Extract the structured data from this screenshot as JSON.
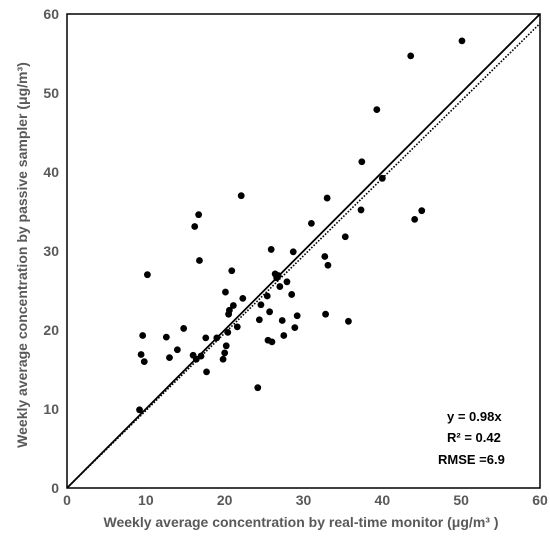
{
  "chart_data": {
    "type": "scatter",
    "xlabel": "Weekly average concentration by real-time monitor (μg/m³ )",
    "ylabel": "Weekly average concentration by passive sampler (μg/m³)",
    "xlim": [
      0,
      60
    ],
    "ylim": [
      0,
      60
    ],
    "x_ticks": [
      "0",
      "10",
      "20",
      "30",
      "40",
      "50",
      "60"
    ],
    "y_ticks": [
      "0",
      "10",
      "20",
      "30",
      "40",
      "50",
      "60"
    ],
    "grid": false,
    "colors": {
      "points": "#000000",
      "lines": "#000000",
      "axis_text": "#595959",
      "frame": "#000000"
    },
    "points": [
      {
        "x": 9.2,
        "y": 9.9
      },
      {
        "x": 9.4,
        "y": 16.9
      },
      {
        "x": 9.6,
        "y": 19.3
      },
      {
        "x": 9.8,
        "y": 16.0
      },
      {
        "x": 10.2,
        "y": 27.0
      },
      {
        "x": 12.6,
        "y": 19.1
      },
      {
        "x": 13.0,
        "y": 16.5
      },
      {
        "x": 14.0,
        "y": 17.5
      },
      {
        "x": 14.8,
        "y": 20.2
      },
      {
        "x": 16.0,
        "y": 16.8
      },
      {
        "x": 16.2,
        "y": 33.1
      },
      {
        "x": 16.4,
        "y": 16.3
      },
      {
        "x": 16.7,
        "y": 34.6
      },
      {
        "x": 16.8,
        "y": 28.8
      },
      {
        "x": 17.0,
        "y": 16.7
      },
      {
        "x": 17.6,
        "y": 19.0
      },
      {
        "x": 17.7,
        "y": 14.7
      },
      {
        "x": 19.0,
        "y": 19.0
      },
      {
        "x": 19.8,
        "y": 16.3
      },
      {
        "x": 20.0,
        "y": 17.1
      },
      {
        "x": 20.1,
        "y": 24.8
      },
      {
        "x": 20.2,
        "y": 18.0
      },
      {
        "x": 20.4,
        "y": 19.7
      },
      {
        "x": 20.5,
        "y": 22.0
      },
      {
        "x": 20.6,
        "y": 22.5
      },
      {
        "x": 20.9,
        "y": 27.5
      },
      {
        "x": 21.1,
        "y": 23.1
      },
      {
        "x": 21.6,
        "y": 20.4
      },
      {
        "x": 22.1,
        "y": 37.0
      },
      {
        "x": 22.3,
        "y": 24.0
      },
      {
        "x": 24.2,
        "y": 12.7
      },
      {
        "x": 24.4,
        "y": 21.3
      },
      {
        "x": 24.6,
        "y": 23.2
      },
      {
        "x": 25.4,
        "y": 24.3
      },
      {
        "x": 25.5,
        "y": 18.7
      },
      {
        "x": 25.7,
        "y": 22.3
      },
      {
        "x": 25.9,
        "y": 30.2
      },
      {
        "x": 26.0,
        "y": 18.5
      },
      {
        "x": 26.4,
        "y": 27.1
      },
      {
        "x": 26.6,
        "y": 26.6
      },
      {
        "x": 26.8,
        "y": 26.9
      },
      {
        "x": 27.0,
        "y": 25.5
      },
      {
        "x": 27.3,
        "y": 21.2
      },
      {
        "x": 27.5,
        "y": 19.3
      },
      {
        "x": 27.9,
        "y": 26.1
      },
      {
        "x": 28.5,
        "y": 24.5
      },
      {
        "x": 28.7,
        "y": 29.9
      },
      {
        "x": 28.9,
        "y": 20.3
      },
      {
        "x": 29.2,
        "y": 21.8
      },
      {
        "x": 31.0,
        "y": 33.5
      },
      {
        "x": 32.7,
        "y": 29.3
      },
      {
        "x": 32.8,
        "y": 22.0
      },
      {
        "x": 33.0,
        "y": 36.7
      },
      {
        "x": 33.1,
        "y": 28.2
      },
      {
        "x": 35.3,
        "y": 31.8
      },
      {
        "x": 35.7,
        "y": 21.1
      },
      {
        "x": 37.3,
        "y": 35.2
      },
      {
        "x": 37.4,
        "y": 41.3
      },
      {
        "x": 39.3,
        "y": 47.9
      },
      {
        "x": 40.0,
        "y": 39.2
      },
      {
        "x": 43.6,
        "y": 54.7
      },
      {
        "x": 44.1,
        "y": 34.0
      },
      {
        "x": 45.0,
        "y": 35.1
      },
      {
        "x": 50.1,
        "y": 56.6
      }
    ],
    "fit_line": {
      "slope": 0.98,
      "style": "dotted"
    },
    "identity_line": {
      "slope": 1.0,
      "style": "solid"
    },
    "annotations": [
      "y = 0.98x",
      "R² = 0.42",
      "RMSE =6.9"
    ]
  }
}
